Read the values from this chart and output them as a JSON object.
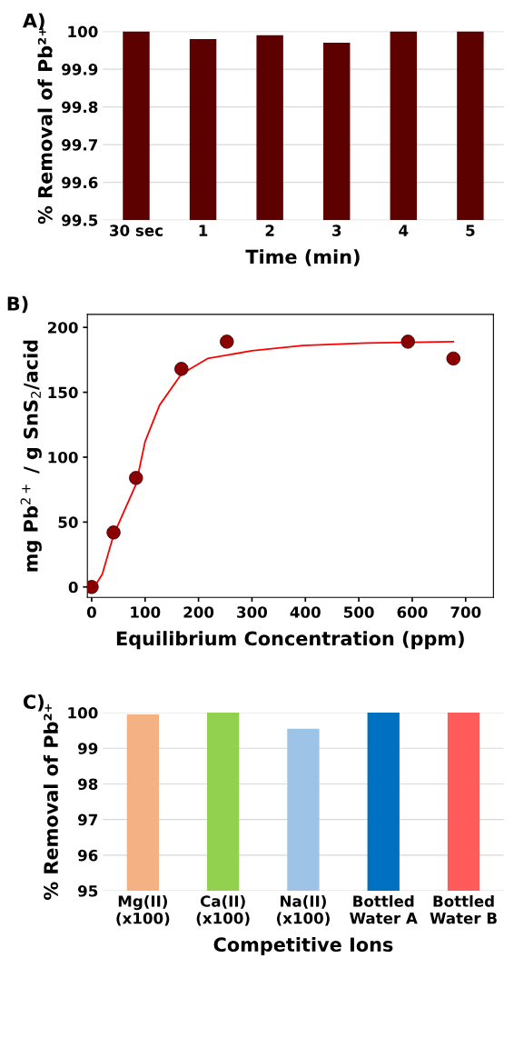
{
  "chart_data": [
    {
      "type": "bar",
      "title": "A)",
      "xlabel": "Time (min)",
      "ylabel": "% Removal of Pb²⁺",
      "categories": [
        "30 sec",
        "1",
        "2",
        "3",
        "4",
        "5"
      ],
      "values": [
        100,
        99.98,
        99.99,
        99.97,
        100,
        100
      ],
      "color": "#5c0000",
      "ylim": [
        99.5,
        100
      ],
      "yticks": [
        99.5,
        99.6,
        99.7,
        99.8,
        99.9,
        100
      ],
      "grid": "y"
    },
    {
      "type": "scatter",
      "title": "B)",
      "xlabel": "Equilibrium Concentration (ppm)",
      "ylabel": "mg Pb$^{2+}$ / g SnS$_{2}$/acid",
      "xlim": [
        -8,
        752
      ],
      "ylim": [
        -8,
        210
      ],
      "xticks": [
        0,
        100,
        200,
        300,
        400,
        500,
        600,
        700
      ],
      "yticks": [
        0,
        50,
        100,
        150,
        200
      ],
      "grid": false,
      "series": [
        {
          "type": "scatter",
          "color": "#8b0000",
          "marker": "circle",
          "x": [
            0,
            41,
            83,
            168,
            253,
            592,
            677
          ],
          "values": [
            0,
            42,
            84,
            168,
            189,
            189,
            176
          ]
        },
        {
          "type": "line",
          "color": "#ff0000",
          "marker": "none",
          "line_style": "solid",
          "x": [
            0,
            8,
            20,
            41,
            83,
            100,
            127,
            168,
            217,
            300,
            395,
            514,
            677
          ],
          "values": [
            -1,
            2,
            10,
            40,
            79,
            112,
            140,
            164,
            176,
            182,
            186,
            188,
            189
          ]
        }
      ]
    },
    {
      "type": "bar",
      "title": "C)",
      "xlabel": "Competitive Ions",
      "ylabel": "% Removal of Pb²⁺",
      "categories": [
        "Mg(II)\n(x100)",
        "Ca(II)\n(x100)",
        "Na(II)\n(x100)",
        "Bottled\nWater A",
        "Bottled\nWater B"
      ],
      "values": [
        99.95,
        100,
        99.55,
        100,
        100
      ],
      "colors": [
        "#f4b183",
        "#92d050",
        "#9dc3e6",
        "#0070c0",
        "#ff5b5b"
      ],
      "ylim": [
        95,
        100
      ],
      "yticks": [
        95,
        96,
        97,
        98,
        99,
        100
      ],
      "grid": "y"
    }
  ]
}
